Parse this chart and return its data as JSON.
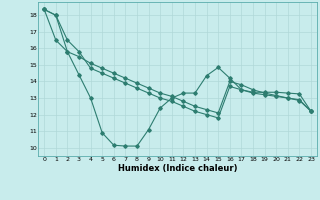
{
  "xlabel": "Humidex (Indice chaleur)",
  "bg_color": "#c8ecec",
  "grid_color": "#b0d8d8",
  "line_color": "#2d7d70",
  "xlim": [
    -0.5,
    23.5
  ],
  "ylim": [
    9.5,
    18.8
  ],
  "xticks": [
    0,
    1,
    2,
    3,
    4,
    5,
    6,
    7,
    8,
    9,
    10,
    11,
    12,
    13,
    14,
    15,
    16,
    17,
    18,
    19,
    20,
    21,
    22,
    23
  ],
  "yticks": [
    10,
    11,
    12,
    13,
    14,
    15,
    16,
    17,
    18
  ],
  "series1_x": [
    0,
    1,
    2,
    3,
    4,
    5,
    6,
    7,
    8,
    9,
    10,
    11,
    12,
    13,
    14,
    15,
    16,
    17,
    18,
    19,
    20,
    21,
    22,
    23
  ],
  "series1_y": [
    18.35,
    18.0,
    16.5,
    15.8,
    14.8,
    14.5,
    14.2,
    13.9,
    13.6,
    13.3,
    13.0,
    12.8,
    12.5,
    12.2,
    12.0,
    11.8,
    13.7,
    13.5,
    13.3,
    13.2,
    13.1,
    13.0,
    12.9,
    12.2
  ],
  "series2_x": [
    0,
    1,
    2,
    3,
    4,
    5,
    6,
    7,
    8,
    9,
    10,
    11,
    12,
    13,
    14,
    15,
    16,
    17,
    18,
    19,
    20,
    21,
    22,
    23
  ],
  "series2_y": [
    18.35,
    18.0,
    15.8,
    14.4,
    13.0,
    10.9,
    10.15,
    10.1,
    10.1,
    11.1,
    12.4,
    13.0,
    13.3,
    13.3,
    14.35,
    14.85,
    14.2,
    13.5,
    13.35,
    13.35,
    13.35,
    13.3,
    13.25,
    12.2
  ],
  "series3_x": [
    0,
    1,
    2,
    3,
    4,
    5,
    6,
    7,
    8,
    9,
    10,
    11,
    12,
    13,
    14,
    15,
    16,
    17,
    18,
    19,
    20,
    21,
    22,
    23
  ],
  "series3_y": [
    18.35,
    16.5,
    15.8,
    15.5,
    15.1,
    14.8,
    14.5,
    14.2,
    13.9,
    13.6,
    13.3,
    13.1,
    12.8,
    12.5,
    12.3,
    12.1,
    14.0,
    13.8,
    13.5,
    13.3,
    13.15,
    13.0,
    12.85,
    12.2
  ]
}
